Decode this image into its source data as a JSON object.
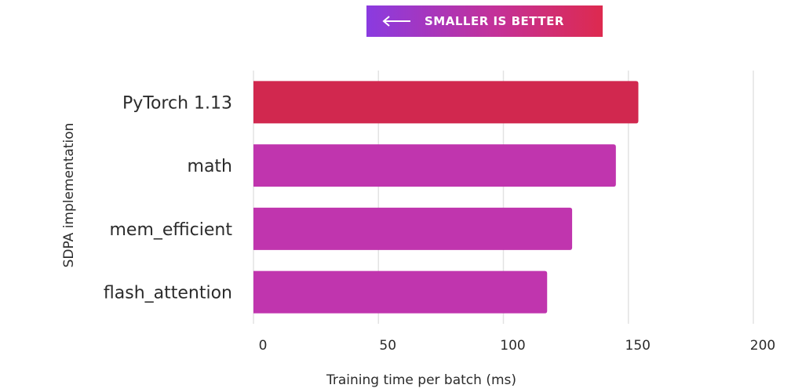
{
  "banner": {
    "text": "SMALLER IS BETTER",
    "gradient_start": "#8a3be0",
    "gradient_end": "#dd2a4f"
  },
  "chart_data": {
    "type": "bar",
    "orientation": "horizontal",
    "categories": [
      "PyTorch 1.13",
      "math",
      "mem_efficient",
      "flash_attention"
    ],
    "values": [
      154,
      145,
      127.5,
      117.5
    ],
    "colors": [
      "#d1284f",
      "#c035ae",
      "#c035ae",
      "#c035ae"
    ],
    "xlabel": "Training time per batch (ms)",
    "ylabel": "SDPA implementation",
    "xlim": [
      0,
      200
    ],
    "xticks": [
      0,
      50,
      100,
      150,
      200
    ],
    "grid": true
  }
}
